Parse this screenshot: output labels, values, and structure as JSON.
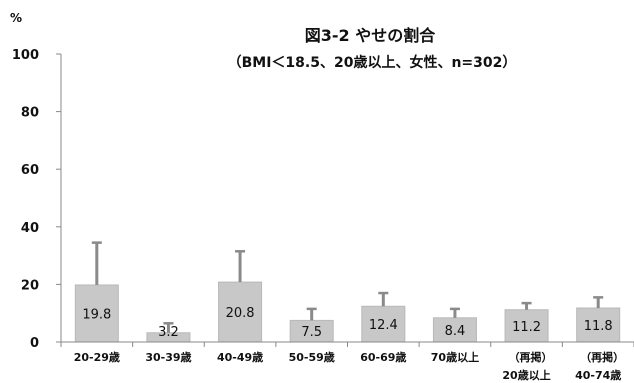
{
  "chart_data": {
    "type": "bar",
    "title": "図3-2 やせの割合",
    "subtitle": "（BMI＜18.5、20歳以上、女性、n=302）",
    "unit_label": "%",
    "categories": [
      [
        "20-29歳"
      ],
      [
        "30-39歳"
      ],
      [
        "40-49歳"
      ],
      [
        "50-59歳"
      ],
      [
        "60-69歳"
      ],
      [
        "70歳以上"
      ],
      [
        "（再掲）",
        "20歳以上"
      ],
      [
        "（再掲）",
        "40-74歳"
      ]
    ],
    "values": [
      19.8,
      3.2,
      20.8,
      7.5,
      12.4,
      8.4,
      11.2,
      11.8
    ],
    "error_upper": [
      34.5,
      6.5,
      31.5,
      11.5,
      17.0,
      11.5,
      13.5,
      15.5
    ],
    "value_labels": [
      "19.8",
      "3.2",
      "20.8",
      "7.5",
      "12.4",
      "8.4",
      "11.2",
      "11.8"
    ],
    "ylim": [
      0,
      100
    ],
    "yticks": [
      "0",
      "20",
      "40",
      "60",
      "80",
      "100"
    ],
    "xlabel": "",
    "ylabel": "",
    "grid": false,
    "legend": "none",
    "colors": {
      "bar": "#c8c8c8",
      "bar_edge": "#b8b8b8",
      "error": "#8a8a8a",
      "axis": "#888888",
      "text": "#111111"
    }
  }
}
